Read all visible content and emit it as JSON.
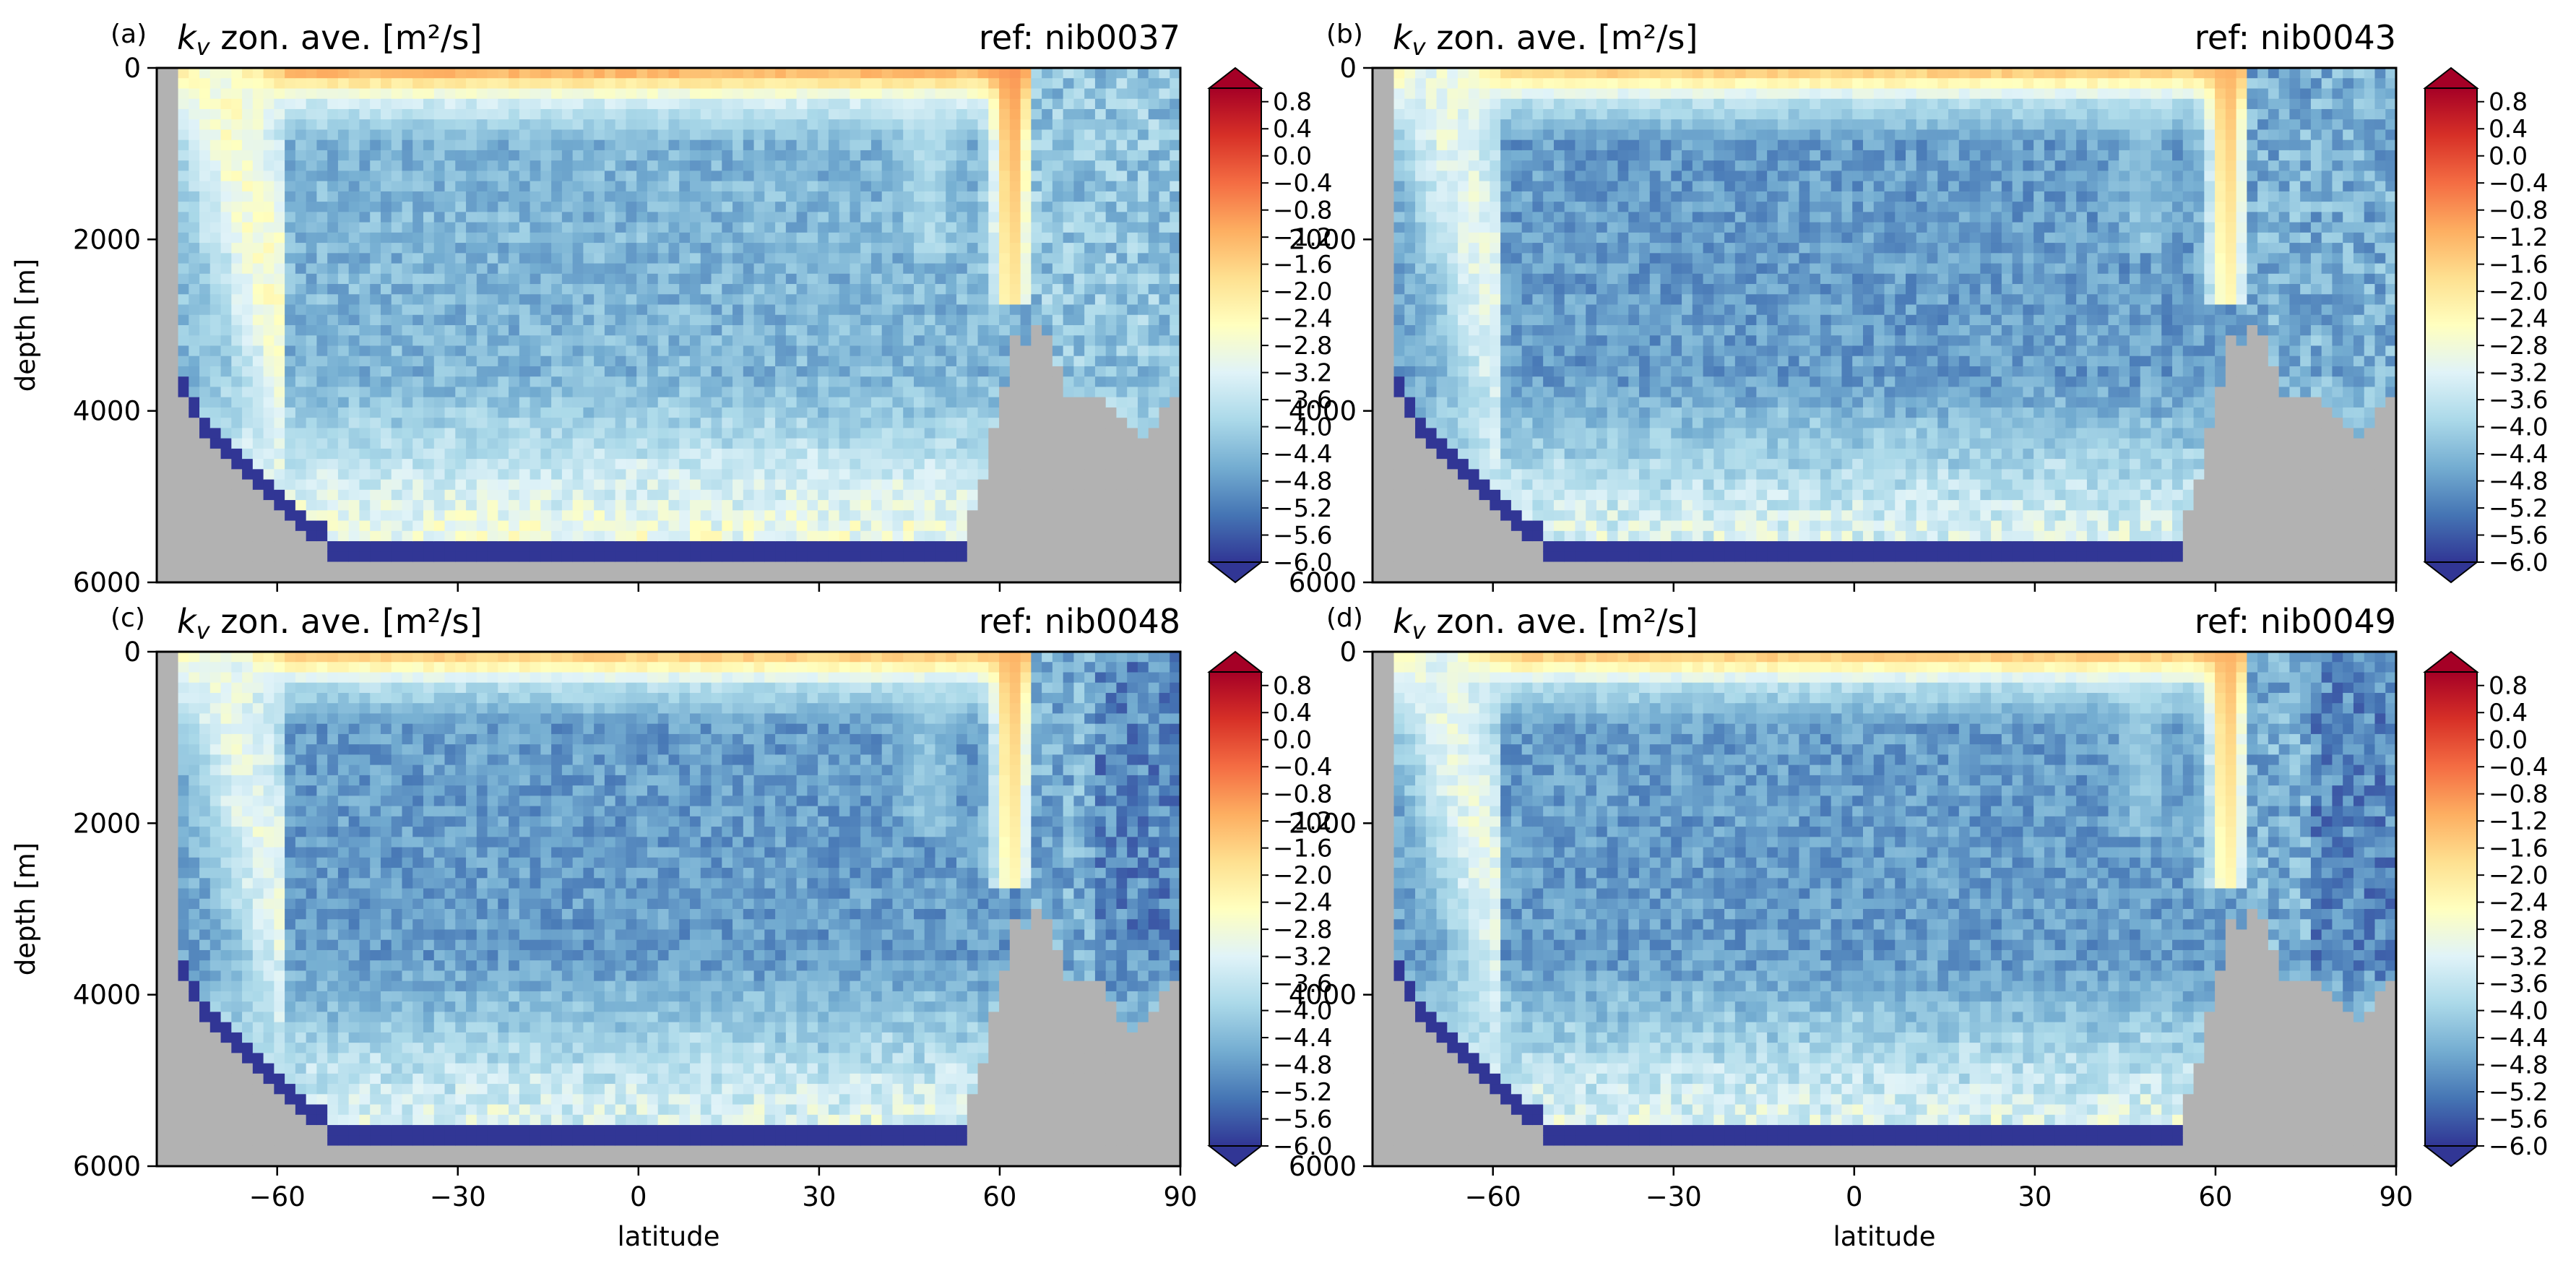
{
  "figure": {
    "shared": {
      "ylabel": "depth [m]",
      "xlabel": "latitude",
      "colorbar_tick_labels": [
        "0.8",
        "0.4",
        "0.0",
        "−0.4",
        "−0.8",
        "−1.2",
        "−1.6",
        "−2.0",
        "−2.4",
        "−2.8",
        "−3.2",
        "−3.6",
        "−4.0",
        "−4.4",
        "−4.8",
        "−5.2",
        "−5.6",
        "−6.0"
      ]
    },
    "panels": [
      {
        "letter": "(a)",
        "title": "zon. ave. [m²/s]",
        "ref": "ref: nib0037"
      },
      {
        "letter": "(b)",
        "title": "zon. ave. [m²/s]",
        "ref": "ref: nib0043"
      },
      {
        "letter": "(c)",
        "title": "zon. ave. [m²/s]",
        "ref": "ref: nib0048"
      },
      {
        "letter": "(d)",
        "title": "zon. ave. [m²/s]",
        "ref": "ref: nib0049"
      }
    ]
  },
  "chart_data": [
    {
      "type": "heatmap",
      "panel": "a",
      "title": "k_v zon. ave. [m²/s]",
      "annotation": "ref: nib0037",
      "quantity": "log10 of vertical diffusivity k_v, zonally averaged",
      "xlabel": "",
      "ylabel": "depth [m]",
      "xlim": [
        -80,
        90
      ],
      "ylim": [
        6000,
        0
      ],
      "x_ticks": [
        -60,
        -30,
        0,
        30,
        60,
        90
      ],
      "y_ticks": [
        0,
        2000,
        4000,
        6000
      ],
      "show_x_tick_labels": false,
      "colorbar": {
        "range": [
          -6.0,
          1.0
        ],
        "step": 0.4,
        "colormap": "RdYlBu_r",
        "extend": "both"
      },
      "land_color": "#b2b2b2",
      "grid": false
    },
    {
      "type": "heatmap",
      "panel": "b",
      "title": "k_v zon. ave. [m²/s]",
      "annotation": "ref: nib0043",
      "xlabel": "",
      "ylabel": "",
      "xlim": [
        -80,
        90
      ],
      "ylim": [
        6000,
        0
      ],
      "x_ticks": [
        -60,
        -30,
        0,
        30,
        60,
        90
      ],
      "y_ticks": [
        0,
        2000,
        4000,
        6000
      ],
      "show_x_tick_labels": false,
      "colorbar": {
        "range": [
          -6.0,
          1.0
        ],
        "step": 0.4,
        "colormap": "RdYlBu_r",
        "extend": "both"
      },
      "land_color": "#b2b2b2",
      "grid": false
    },
    {
      "type": "heatmap",
      "panel": "c",
      "title": "k_v zon. ave. [m²/s]",
      "annotation": "ref: nib0048",
      "xlabel": "latitude",
      "ylabel": "depth [m]",
      "xlim": [
        -80,
        90
      ],
      "ylim": [
        6000,
        0
      ],
      "x_ticks": [
        -60,
        -30,
        0,
        30,
        60,
        90
      ],
      "y_ticks": [
        0,
        2000,
        4000,
        6000
      ],
      "show_x_tick_labels": true,
      "colorbar": {
        "range": [
          -6.0,
          1.0
        ],
        "step": 0.4,
        "colormap": "RdYlBu_r",
        "extend": "both"
      },
      "land_color": "#b2b2b2",
      "grid": false
    },
    {
      "type": "heatmap",
      "panel": "d",
      "title": "k_v zon. ave. [m²/s]",
      "annotation": "ref: nib0049",
      "xlabel": "latitude",
      "ylabel": "",
      "xlim": [
        -80,
        90
      ],
      "ylim": [
        6000,
        0
      ],
      "x_ticks": [
        -60,
        -30,
        0,
        30,
        60,
        90
      ],
      "y_ticks": [
        0,
        2000,
        4000,
        6000
      ],
      "show_x_tick_labels": true,
      "colorbar": {
        "range": [
          -6.0,
          1.0
        ],
        "step": 0.4,
        "colormap": "RdYlBu_r",
        "extend": "both"
      },
      "land_color": "#b2b2b2",
      "grid": false
    }
  ]
}
